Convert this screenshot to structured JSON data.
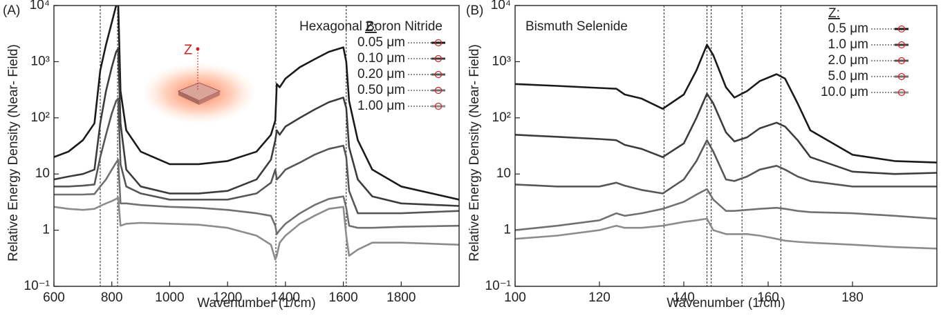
{
  "chart_data": [
    {
      "type": "line",
      "panel_label": "(A)",
      "annotation": "Hexagonal Boron Nitride",
      "inset_label": "Z",
      "x_label": "Wavenumber (1/cm)",
      "y_label": "Relative Energy Density (Near- Field)",
      "log_y": true,
      "legend_title": "Z:",
      "legend_position": "upper right",
      "xlim": [
        600,
        2000
      ],
      "xticks": [
        600,
        800,
        1000,
        1200,
        1400,
        1600,
        1800
      ],
      "ylim": [
        0.1,
        10000
      ],
      "yticks": [
        {
          "value": 0.1,
          "label": "10⁻¹"
        },
        1,
        10,
        {
          "value": 100,
          "label": "10²"
        },
        {
          "value": 1000,
          "label": "10³"
        },
        {
          "value": 10000,
          "label": "10⁴"
        }
      ],
      "vlines": [
        760,
        820,
        1367,
        1610
      ],
      "x": [
        600,
        650,
        700,
        740,
        760,
        780,
        800,
        815,
        822,
        830,
        850,
        900,
        1000,
        1100,
        1200,
        1300,
        1350,
        1365,
        1370,
        1380,
        1400,
        1450,
        1500,
        1550,
        1600,
        1610,
        1620,
        1650,
        1700,
        1800,
        2000
      ],
      "series": [
        {
          "name": "0.05 μm",
          "color": "#1a1a1a",
          "values": [
            20,
            25,
            40,
            80,
            700,
            2000,
            5000,
            10000,
            12000,
            300,
            60,
            25,
            15,
            15,
            17,
            25,
            50,
            90,
            400,
            350,
            500,
            800,
            1100,
            1500,
            1800,
            1000,
            200,
            40,
            12,
            6,
            3.5
          ]
        },
        {
          "name": "0.10 μm",
          "color": "#3c3c3c",
          "values": [
            8,
            9,
            10,
            12,
            80,
            300,
            800,
            1500,
            1700,
            80,
            12,
            6,
            4.5,
            4.5,
            5,
            8,
            18,
            40,
            60,
            50,
            70,
            100,
            140,
            190,
            230,
            150,
            30,
            8,
            4,
            3,
            2.7
          ]
        },
        {
          "name": "0.20 μm",
          "color": "#565656",
          "values": [
            6,
            6,
            6.2,
            6.5,
            20,
            50,
            120,
            200,
            220,
            15,
            6,
            4.5,
            3.5,
            3.5,
            3.5,
            4.5,
            7,
            12,
            8,
            9,
            12,
            16,
            22,
            28,
            32,
            20,
            5,
            2,
            2,
            2,
            2.2
          ]
        },
        {
          "name": "0.50 μm",
          "color": "#707070",
          "values": [
            4.3,
            4.3,
            4.3,
            4.4,
            6,
            8,
            12,
            16,
            18,
            3,
            3,
            2.8,
            2.6,
            2.5,
            2.3,
            2,
            1.8,
            1.2,
            0.85,
            1.0,
            1.3,
            2,
            2.8,
            3.6,
            4,
            2.5,
            1.2,
            1.1,
            1.1,
            1.15,
            1.2
          ]
        },
        {
          "name": "1.00 μm",
          "color": "#8c8c8c",
          "values": [
            2.6,
            2.4,
            2.3,
            2.4,
            2.7,
            3,
            3.3,
            3.6,
            3.8,
            1.2,
            1.3,
            1.35,
            1.3,
            1.25,
            1.1,
            0.8,
            0.55,
            0.3,
            0.35,
            0.6,
            0.8,
            1.3,
            1.8,
            2.4,
            2.6,
            0.8,
            0.35,
            0.45,
            0.6,
            0.6,
            0.55
          ]
        }
      ]
    },
    {
      "type": "line",
      "panel_label": "(B)",
      "annotation": "Bismuth Selenide",
      "x_label": "Wavenumber (1/cm)",
      "y_label": "Relative Energy Density (Near- Field)",
      "log_y": true,
      "legend_title": "Z:",
      "legend_position": "upper right",
      "xlim": [
        100,
        200
      ],
      "xticks": [
        100,
        120,
        140,
        160,
        180
      ],
      "ylim": [
        0.1,
        10000
      ],
      "yticks": [
        {
          "value": 0.1,
          "label": "10⁻¹"
        },
        1,
        10,
        {
          "value": 100,
          "label": "10²"
        },
        {
          "value": 1000,
          "label": "10³"
        },
        {
          "value": 10000,
          "label": "10⁴"
        }
      ],
      "vlines": [
        135.3,
        145.5,
        146.5,
        153.8,
        163
      ],
      "x": [
        100,
        110,
        120,
        124,
        126,
        130,
        135,
        140,
        143,
        145.5,
        147,
        150,
        152,
        155,
        158,
        162,
        164,
        167,
        170,
        180,
        190,
        200
      ],
      "series": [
        {
          "name": "0.5 μm",
          "color": "#1a1a1a",
          "values": [
            400,
            370,
            340,
            330,
            260,
            220,
            145,
            260,
            700,
            2000,
            1300,
            350,
            230,
            300,
            450,
            600,
            500,
            180,
            60,
            22,
            17,
            16
          ]
        },
        {
          "name": "1.0 μm",
          "color": "#3c3c3c",
          "values": [
            50,
            46,
            42,
            40,
            33,
            28,
            20,
            35,
            100,
            270,
            180,
            55,
            38,
            45,
            65,
            82,
            70,
            40,
            20,
            11,
            10,
            10.5
          ]
        },
        {
          "name": "2.0 μm",
          "color": "#565656",
          "values": [
            6.5,
            6,
            6,
            7,
            6.2,
            5.2,
            4.5,
            8,
            17,
            40,
            25,
            8,
            7.5,
            9,
            12,
            14,
            12,
            9,
            7.5,
            6,
            6,
            6
          ]
        },
        {
          "name": "5.0 μm",
          "color": "#707070",
          "values": [
            1.0,
            1.2,
            1.5,
            2,
            1.8,
            2,
            2.4,
            3.2,
            4.3,
            5.4,
            3.5,
            2.2,
            2.2,
            2.3,
            2.4,
            2.5,
            2.4,
            2.2,
            2.1,
            2,
            1.8,
            1.6
          ]
        },
        {
          "name": "10.0 μm",
          "color": "#8c8c8c",
          "values": [
            0.7,
            0.8,
            1.0,
            1.2,
            1.1,
            1.1,
            1.2,
            1.4,
            1.5,
            1.6,
            1.0,
            0.85,
            0.85,
            0.85,
            0.8,
            0.7,
            0.65,
            0.62,
            0.6,
            0.55,
            0.5,
            0.47
          ]
        }
      ]
    }
  ]
}
